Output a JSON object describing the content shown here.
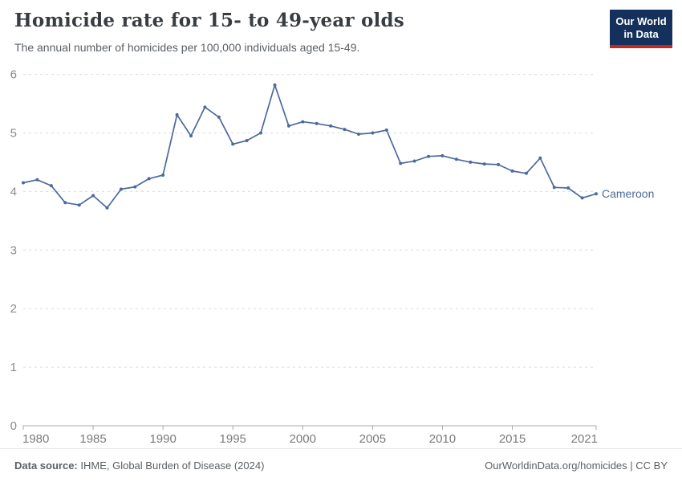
{
  "header": {
    "title": "Homicide rate for 15- to 49-year olds",
    "subtitle": "The annual number of homicides per 100,000 individuals aged 15-49.",
    "logo": {
      "line1": "Our World",
      "line2": "in Data",
      "bg_color": "#14305c",
      "accent_color": "#c4291d"
    }
  },
  "chart_data": {
    "type": "line",
    "title": "Homicide rate for 15- to 49-year olds",
    "ylabel": "",
    "xlabel": "",
    "xlim": [
      1980,
      2021
    ],
    "ylim": [
      0,
      6
    ],
    "x_ticks": [
      1980,
      1985,
      1990,
      1995,
      2000,
      2005,
      2010,
      2015,
      2021
    ],
    "y_ticks": [
      0,
      1,
      2,
      3,
      4,
      5,
      6
    ],
    "grid": "horizontal dashed",
    "legend": "end-of-line entity label",
    "x": [
      1980,
      1981,
      1982,
      1983,
      1984,
      1985,
      1986,
      1987,
      1988,
      1989,
      1990,
      1991,
      1992,
      1993,
      1994,
      1995,
      1996,
      1997,
      1998,
      1999,
      2000,
      2001,
      2002,
      2003,
      2004,
      2005,
      2006,
      2007,
      2008,
      2009,
      2010,
      2011,
      2012,
      2013,
      2014,
      2015,
      2016,
      2017,
      2018,
      2019,
      2020,
      2021
    ],
    "series": [
      {
        "name": "Cameroon",
        "color": "#4c6a9c",
        "values": [
          4.15,
          4.2,
          4.1,
          3.81,
          3.77,
          3.93,
          3.72,
          4.04,
          4.08,
          4.22,
          4.28,
          5.31,
          4.95,
          5.44,
          5.27,
          4.81,
          4.87,
          5.0,
          5.82,
          5.12,
          5.19,
          5.16,
          5.12,
          5.06,
          4.98,
          5.0,
          5.05,
          4.48,
          4.52,
          4.6,
          4.61,
          4.55,
          4.5,
          4.47,
          4.46,
          4.35,
          4.31,
          4.57,
          4.07,
          4.06,
          3.89,
          3.96
        ]
      }
    ]
  },
  "footer": {
    "source_label": "Data source:",
    "source_text": " IHME, Global Burden of Disease (2024)",
    "right_text": "OurWorldinData.org/homicides | CC BY"
  }
}
